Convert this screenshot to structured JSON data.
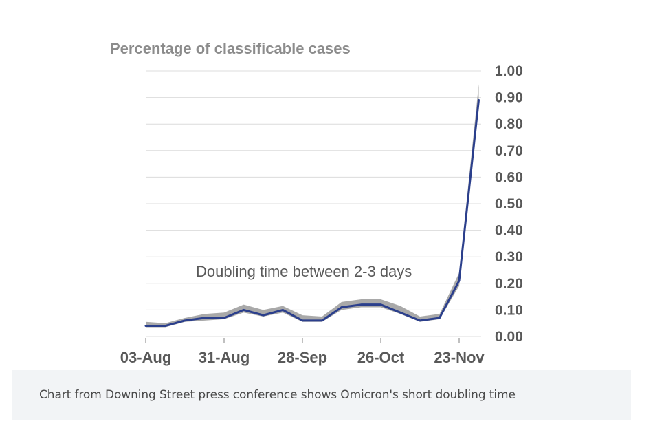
{
  "chart_data": {
    "type": "line",
    "title": "Percentage of classificable cases",
    "y_ticks": [
      "1.00",
      "0.90",
      "0.80",
      "0.70",
      "0.60",
      "0.50",
      "0.40",
      "0.30",
      "0.20",
      "0.10",
      "0.00"
    ],
    "ylim": [
      0,
      1
    ],
    "x_ticks": [
      "03-Aug",
      "31-Aug",
      "28-Sep",
      "26-Oct",
      "23-Nov"
    ],
    "x": [
      "03-Aug",
      "10-Aug",
      "17-Aug",
      "24-Aug",
      "31-Aug",
      "07-Sep",
      "14-Sep",
      "21-Sep",
      "28-Sep",
      "05-Oct",
      "12-Oct",
      "19-Oct",
      "26-Oct",
      "02-Nov",
      "09-Nov",
      "16-Nov",
      "23-Nov",
      "30-Nov"
    ],
    "series": [
      {
        "values": [
          0.04,
          0.04,
          0.06,
          0.07,
          0.07,
          0.1,
          0.08,
          0.1,
          0.06,
          0.06,
          0.11,
          0.12,
          0.12,
          0.09,
          0.06,
          0.07,
          0.21,
          0.89
        ],
        "color": "#2b3f8c"
      }
    ],
    "band": {
      "lower": [
        0.035,
        0.035,
        0.055,
        0.06,
        0.065,
        0.09,
        0.075,
        0.09,
        0.055,
        0.055,
        0.1,
        0.11,
        0.11,
        0.085,
        0.055,
        0.065,
        0.19,
        0.87
      ],
      "upper": [
        0.055,
        0.05,
        0.07,
        0.085,
        0.09,
        0.12,
        0.1,
        0.115,
        0.08,
        0.075,
        0.13,
        0.14,
        0.14,
        0.115,
        0.075,
        0.085,
        0.24,
        0.95
      ],
      "color": "#9a9a9a"
    },
    "annotation": "Doubling time between 2-3 days",
    "grid": true,
    "y_axis_side": "right"
  },
  "caption": "Chart from Downing Street press conference shows Omicron's short doubling time"
}
